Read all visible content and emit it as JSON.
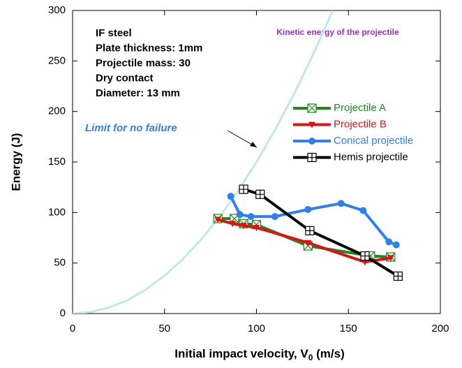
{
  "chart_data": {
    "type": "line",
    "xlabel": {
      "text": "Initial impact velocity, V",
      "subscript": "0",
      "suffix": " (m/s)"
    },
    "ylabel": "Energy (J)",
    "xlim": [
      0,
      200
    ],
    "ylim": [
      0,
      300
    ],
    "xticks": [
      0,
      50,
      100,
      150,
      200
    ],
    "yticks": [
      0,
      50,
      100,
      150,
      200,
      250,
      300
    ],
    "annotations": [
      "IF steel",
      "Plate thickness: 1mm",
      "Projectile mass: 30",
      "Dry contact",
      "Diameter: 13 mm"
    ],
    "limit_label": "Limit for no failure",
    "curve": {
      "name": "Kinetic energy of the projectile",
      "color": "#bfe9e6",
      "label_color": "#9b30c8",
      "x": [
        0,
        10,
        20,
        30,
        40,
        50,
        60,
        70,
        80,
        90,
        100,
        110,
        120,
        130,
        140,
        141.4
      ],
      "values": [
        0,
        1.5,
        6,
        13.5,
        24,
        37.5,
        54,
        73.5,
        96,
        121.5,
        150,
        181.5,
        216,
        253.5,
        294,
        300
      ]
    },
    "series": [
      {
        "name": "Projectile A",
        "color": "#1e8a1e",
        "marker": "box-x",
        "x": [
          79,
          88,
          93,
          100,
          128,
          162,
          173
        ],
        "values": [
          94,
          94,
          89,
          88,
          67,
          57,
          56
        ]
      },
      {
        "name": "Projectile B",
        "color": "#d81414",
        "marker": "triangle-down",
        "x": [
          79,
          87,
          93,
          100,
          128,
          159,
          173
        ],
        "values": [
          93,
          89,
          87,
          85,
          70,
          51,
          55
        ]
      },
      {
        "name": "Conical projectile",
        "color": "#2f7fef",
        "marker": "circle",
        "x": [
          86,
          91,
          97,
          110,
          128,
          146,
          158,
          172,
          176
        ],
        "values": [
          116,
          98,
          96,
          96,
          103,
          109,
          102,
          71,
          68
        ]
      },
      {
        "name": "Hemis projectile",
        "color": "#000000",
        "marker": "box-plus",
        "x": [
          93,
          102,
          129,
          159,
          177
        ],
        "values": [
          123,
          118,
          82,
          57,
          37
        ]
      }
    ]
  }
}
